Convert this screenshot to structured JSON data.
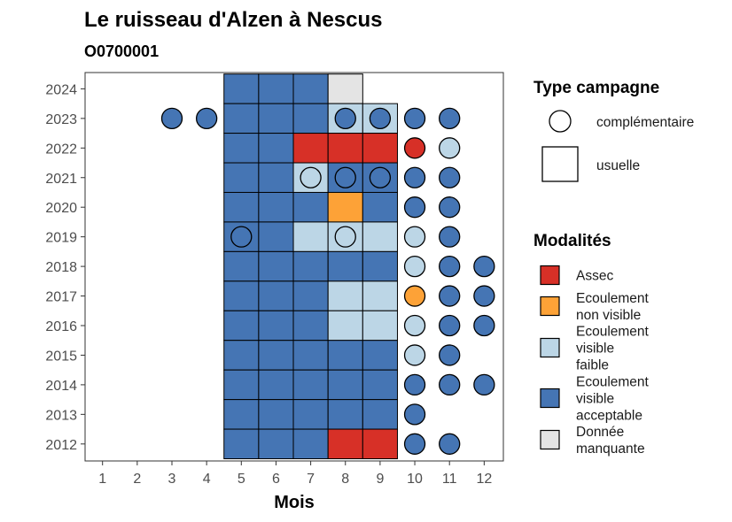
{
  "chart_data": {
    "type": "heatmap",
    "title": "Le ruisseau d'Alzen à Nescus",
    "subtitle": "O0700001",
    "xlabel": "Mois",
    "ylabel": "",
    "x_ticks": [
      "1",
      "2",
      "3",
      "4",
      "5",
      "6",
      "7",
      "8",
      "9",
      "10",
      "11",
      "12"
    ],
    "y_ticks": [
      "2012",
      "2013",
      "2014",
      "2015",
      "2016",
      "2017",
      "2018",
      "2019",
      "2020",
      "2021",
      "2022",
      "2023",
      "2024"
    ],
    "grid": false,
    "legend_position": "right",
    "legend": {
      "campaign_title": "Type campagne",
      "campaign_types": [
        {
          "key": "complementaire",
          "label": "complémentaire",
          "shape": "circle"
        },
        {
          "key": "usuelle",
          "label": "usuelle",
          "shape": "square"
        }
      ],
      "modalities_title": "Modalités",
      "modalities": [
        {
          "key": "assec",
          "lines": [
            "Assec"
          ],
          "color": "#D73027"
        },
        {
          "key": "nv",
          "lines": [
            "Ecoulement",
            "non visible"
          ],
          "color": "#FDA237"
        },
        {
          "key": "faible",
          "lines": [
            "Ecoulement",
            "visible",
            "faible"
          ],
          "color": "#BCD6E6"
        },
        {
          "key": "acceptable",
          "lines": [
            "Ecoulement",
            "visible",
            "acceptable"
          ],
          "color": "#4575B4"
        },
        {
          "key": "manquante",
          "lines": [
            "Donnée",
            "manquante"
          ],
          "color": "#E4E4E4"
        }
      ]
    },
    "observations": [
      {
        "year": 2024,
        "month": 5,
        "type": "usuelle",
        "status": "acceptable"
      },
      {
        "year": 2024,
        "month": 6,
        "type": "usuelle",
        "status": "acceptable"
      },
      {
        "year": 2024,
        "month": 7,
        "type": "usuelle",
        "status": "acceptable"
      },
      {
        "year": 2024,
        "month": 8,
        "type": "usuelle",
        "status": "manquante"
      },
      {
        "year": 2023,
        "month": 3,
        "type": "complementaire",
        "status": "acceptable"
      },
      {
        "year": 2023,
        "month": 4,
        "type": "complementaire",
        "status": "acceptable"
      },
      {
        "year": 2023,
        "month": 5,
        "type": "usuelle",
        "status": "acceptable"
      },
      {
        "year": 2023,
        "month": 6,
        "type": "usuelle",
        "status": "acceptable"
      },
      {
        "year": 2023,
        "month": 7,
        "type": "usuelle",
        "status": "acceptable"
      },
      {
        "year": 2023,
        "month": 8,
        "type": "usuelle",
        "status": "faible"
      },
      {
        "year": 2023,
        "month": 9,
        "type": "usuelle",
        "status": "faible"
      },
      {
        "year": 2023,
        "month": 8,
        "type": "complementaire",
        "status": "acceptable"
      },
      {
        "year": 2023,
        "month": 9,
        "type": "complementaire",
        "status": "acceptable"
      },
      {
        "year": 2023,
        "month": 10,
        "type": "complementaire",
        "status": "acceptable"
      },
      {
        "year": 2023,
        "month": 11,
        "type": "complementaire",
        "status": "acceptable"
      },
      {
        "year": 2022,
        "month": 5,
        "type": "usuelle",
        "status": "acceptable"
      },
      {
        "year": 2022,
        "month": 6,
        "type": "usuelle",
        "status": "acceptable"
      },
      {
        "year": 2022,
        "month": 7,
        "type": "usuelle",
        "status": "assec"
      },
      {
        "year": 2022,
        "month": 8,
        "type": "usuelle",
        "status": "assec"
      },
      {
        "year": 2022,
        "month": 9,
        "type": "usuelle",
        "status": "assec"
      },
      {
        "year": 2022,
        "month": 10,
        "type": "complementaire",
        "status": "assec"
      },
      {
        "year": 2022,
        "month": 11,
        "type": "complementaire",
        "status": "faible"
      },
      {
        "year": 2021,
        "month": 5,
        "type": "usuelle",
        "status": "acceptable"
      },
      {
        "year": 2021,
        "month": 6,
        "type": "usuelle",
        "status": "acceptable"
      },
      {
        "year": 2021,
        "month": 7,
        "type": "usuelle",
        "status": "faible"
      },
      {
        "year": 2021,
        "month": 8,
        "type": "usuelle",
        "status": "acceptable"
      },
      {
        "year": 2021,
        "month": 9,
        "type": "usuelle",
        "status": "acceptable"
      },
      {
        "year": 2021,
        "month": 7,
        "type": "complementaire",
        "status": "faible"
      },
      {
        "year": 2021,
        "month": 8,
        "type": "complementaire",
        "status": "acceptable"
      },
      {
        "year": 2021,
        "month": 9,
        "type": "complementaire",
        "status": "acceptable"
      },
      {
        "year": 2021,
        "month": 10,
        "type": "complementaire",
        "status": "acceptable"
      },
      {
        "year": 2021,
        "month": 11,
        "type": "complementaire",
        "status": "acceptable"
      },
      {
        "year": 2020,
        "month": 5,
        "type": "usuelle",
        "status": "acceptable"
      },
      {
        "year": 2020,
        "month": 6,
        "type": "usuelle",
        "status": "acceptable"
      },
      {
        "year": 2020,
        "month": 7,
        "type": "usuelle",
        "status": "acceptable"
      },
      {
        "year": 2020,
        "month": 8,
        "type": "usuelle",
        "status": "nv"
      },
      {
        "year": 2020,
        "month": 9,
        "type": "usuelle",
        "status": "acceptable"
      },
      {
        "year": 2020,
        "month": 10,
        "type": "complementaire",
        "status": "acceptable"
      },
      {
        "year": 2020,
        "month": 11,
        "type": "complementaire",
        "status": "acceptable"
      },
      {
        "year": 2019,
        "month": 5,
        "type": "usuelle",
        "status": "acceptable"
      },
      {
        "year": 2019,
        "month": 6,
        "type": "usuelle",
        "status": "acceptable"
      },
      {
        "year": 2019,
        "month": 7,
        "type": "usuelle",
        "status": "faible"
      },
      {
        "year": 2019,
        "month": 8,
        "type": "usuelle",
        "status": "faible"
      },
      {
        "year": 2019,
        "month": 9,
        "type": "usuelle",
        "status": "faible"
      },
      {
        "year": 2019,
        "month": 5,
        "type": "complementaire",
        "status": "acceptable"
      },
      {
        "year": 2019,
        "month": 8,
        "type": "complementaire",
        "status": "faible"
      },
      {
        "year": 2019,
        "month": 10,
        "type": "complementaire",
        "status": "faible"
      },
      {
        "year": 2019,
        "month": 11,
        "type": "complementaire",
        "status": "acceptable"
      },
      {
        "year": 2018,
        "month": 5,
        "type": "usuelle",
        "status": "acceptable"
      },
      {
        "year": 2018,
        "month": 6,
        "type": "usuelle",
        "status": "acceptable"
      },
      {
        "year": 2018,
        "month": 7,
        "type": "usuelle",
        "status": "acceptable"
      },
      {
        "year": 2018,
        "month": 8,
        "type": "usuelle",
        "status": "acceptable"
      },
      {
        "year": 2018,
        "month": 9,
        "type": "usuelle",
        "status": "acceptable"
      },
      {
        "year": 2018,
        "month": 10,
        "type": "complementaire",
        "status": "faible"
      },
      {
        "year": 2018,
        "month": 11,
        "type": "complementaire",
        "status": "acceptable"
      },
      {
        "year": 2018,
        "month": 12,
        "type": "complementaire",
        "status": "acceptable"
      },
      {
        "year": 2017,
        "month": 5,
        "type": "usuelle",
        "status": "acceptable"
      },
      {
        "year": 2017,
        "month": 6,
        "type": "usuelle",
        "status": "acceptable"
      },
      {
        "year": 2017,
        "month": 7,
        "type": "usuelle",
        "status": "acceptable"
      },
      {
        "year": 2017,
        "month": 8,
        "type": "usuelle",
        "status": "faible"
      },
      {
        "year": 2017,
        "month": 9,
        "type": "usuelle",
        "status": "faible"
      },
      {
        "year": 2017,
        "month": 10,
        "type": "complementaire",
        "status": "nv"
      },
      {
        "year": 2017,
        "month": 11,
        "type": "complementaire",
        "status": "acceptable"
      },
      {
        "year": 2017,
        "month": 12,
        "type": "complementaire",
        "status": "acceptable"
      },
      {
        "year": 2016,
        "month": 5,
        "type": "usuelle",
        "status": "acceptable"
      },
      {
        "year": 2016,
        "month": 6,
        "type": "usuelle",
        "status": "acceptable"
      },
      {
        "year": 2016,
        "month": 7,
        "type": "usuelle",
        "status": "acceptable"
      },
      {
        "year": 2016,
        "month": 8,
        "type": "usuelle",
        "status": "faible"
      },
      {
        "year": 2016,
        "month": 9,
        "type": "usuelle",
        "status": "faible"
      },
      {
        "year": 2016,
        "month": 10,
        "type": "complementaire",
        "status": "faible"
      },
      {
        "year": 2016,
        "month": 11,
        "type": "complementaire",
        "status": "acceptable"
      },
      {
        "year": 2016,
        "month": 12,
        "type": "complementaire",
        "status": "acceptable"
      },
      {
        "year": 2015,
        "month": 5,
        "type": "usuelle",
        "status": "acceptable"
      },
      {
        "year": 2015,
        "month": 6,
        "type": "usuelle",
        "status": "acceptable"
      },
      {
        "year": 2015,
        "month": 7,
        "type": "usuelle",
        "status": "acceptable"
      },
      {
        "year": 2015,
        "month": 8,
        "type": "usuelle",
        "status": "acceptable"
      },
      {
        "year": 2015,
        "month": 9,
        "type": "usuelle",
        "status": "acceptable"
      },
      {
        "year": 2015,
        "month": 10,
        "type": "complementaire",
        "status": "faible"
      },
      {
        "year": 2015,
        "month": 11,
        "type": "complementaire",
        "status": "acceptable"
      },
      {
        "year": 2014,
        "month": 5,
        "type": "usuelle",
        "status": "acceptable"
      },
      {
        "year": 2014,
        "month": 6,
        "type": "usuelle",
        "status": "acceptable"
      },
      {
        "year": 2014,
        "month": 7,
        "type": "usuelle",
        "status": "acceptable"
      },
      {
        "year": 2014,
        "month": 8,
        "type": "usuelle",
        "status": "acceptable"
      },
      {
        "year": 2014,
        "month": 9,
        "type": "usuelle",
        "status": "acceptable"
      },
      {
        "year": 2014,
        "month": 10,
        "type": "complementaire",
        "status": "acceptable"
      },
      {
        "year": 2014,
        "month": 11,
        "type": "complementaire",
        "status": "acceptable"
      },
      {
        "year": 2014,
        "month": 12,
        "type": "complementaire",
        "status": "acceptable"
      },
      {
        "year": 2013,
        "month": 5,
        "type": "usuelle",
        "status": "acceptable"
      },
      {
        "year": 2013,
        "month": 6,
        "type": "usuelle",
        "status": "acceptable"
      },
      {
        "year": 2013,
        "month": 7,
        "type": "usuelle",
        "status": "acceptable"
      },
      {
        "year": 2013,
        "month": 8,
        "type": "usuelle",
        "status": "acceptable"
      },
      {
        "year": 2013,
        "month": 9,
        "type": "usuelle",
        "status": "acceptable"
      },
      {
        "year": 2013,
        "month": 10,
        "type": "complementaire",
        "status": "acceptable"
      },
      {
        "year": 2012,
        "month": 5,
        "type": "usuelle",
        "status": "acceptable"
      },
      {
        "year": 2012,
        "month": 6,
        "type": "usuelle",
        "status": "acceptable"
      },
      {
        "year": 2012,
        "month": 7,
        "type": "usuelle",
        "status": "acceptable"
      },
      {
        "year": 2012,
        "month": 8,
        "type": "usuelle",
        "status": "assec"
      },
      {
        "year": 2012,
        "month": 9,
        "type": "usuelle",
        "status": "assec"
      },
      {
        "year": 2012,
        "month": 10,
        "type": "complementaire",
        "status": "acceptable"
      },
      {
        "year": 2012,
        "month": 11,
        "type": "complementaire",
        "status": "acceptable"
      }
    ]
  }
}
